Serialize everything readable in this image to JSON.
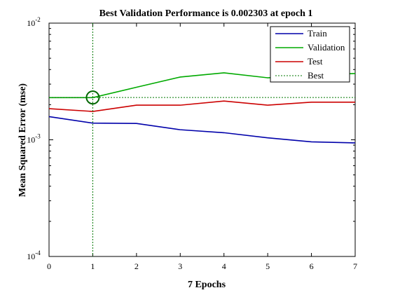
{
  "chart_data": {
    "type": "line",
    "title": "Best Validation Performance is 0.002303 at epoch 1",
    "xlabel": "7 Epochs",
    "ylabel": "Mean Squared Error  (mse)",
    "xlim": [
      0,
      7
    ],
    "ylim": [
      0.0001,
      0.01
    ],
    "yscale": "log",
    "x_ticks": [
      "0",
      "1",
      "2",
      "3",
      "4",
      "5",
      "6",
      "7"
    ],
    "y_ticks": [
      {
        "value": 0.01,
        "base": "10",
        "exp": "-2"
      },
      {
        "value": 0.001,
        "base": "10",
        "exp": "-3"
      },
      {
        "value": 0.0001,
        "base": "10",
        "exp": "-4"
      }
    ],
    "grid": false,
    "legend_position": "top-right",
    "x": [
      0,
      1,
      2,
      3,
      4,
      5,
      6,
      7
    ],
    "series": [
      {
        "name": "Train",
        "color": "#0000aa",
        "style": "solid",
        "values": [
          0.00158,
          0.00139,
          0.00138,
          0.00122,
          0.00115,
          0.00104,
          0.00096,
          0.00094
        ]
      },
      {
        "name": "Validation",
        "color": "#00aa00",
        "style": "solid",
        "values": [
          0.0023,
          0.0023,
          0.00282,
          0.00345,
          0.00375,
          0.0034,
          0.0036,
          0.0037
        ]
      },
      {
        "name": "Test",
        "color": "#cc0000",
        "style": "solid",
        "values": [
          0.00185,
          0.00175,
          0.00198,
          0.00198,
          0.00215,
          0.00198,
          0.0021,
          0.0021
        ]
      }
    ],
    "best": {
      "name": "Best",
      "color": "#007700",
      "style": "dotted",
      "epoch": 1,
      "value": 0.002303
    }
  }
}
